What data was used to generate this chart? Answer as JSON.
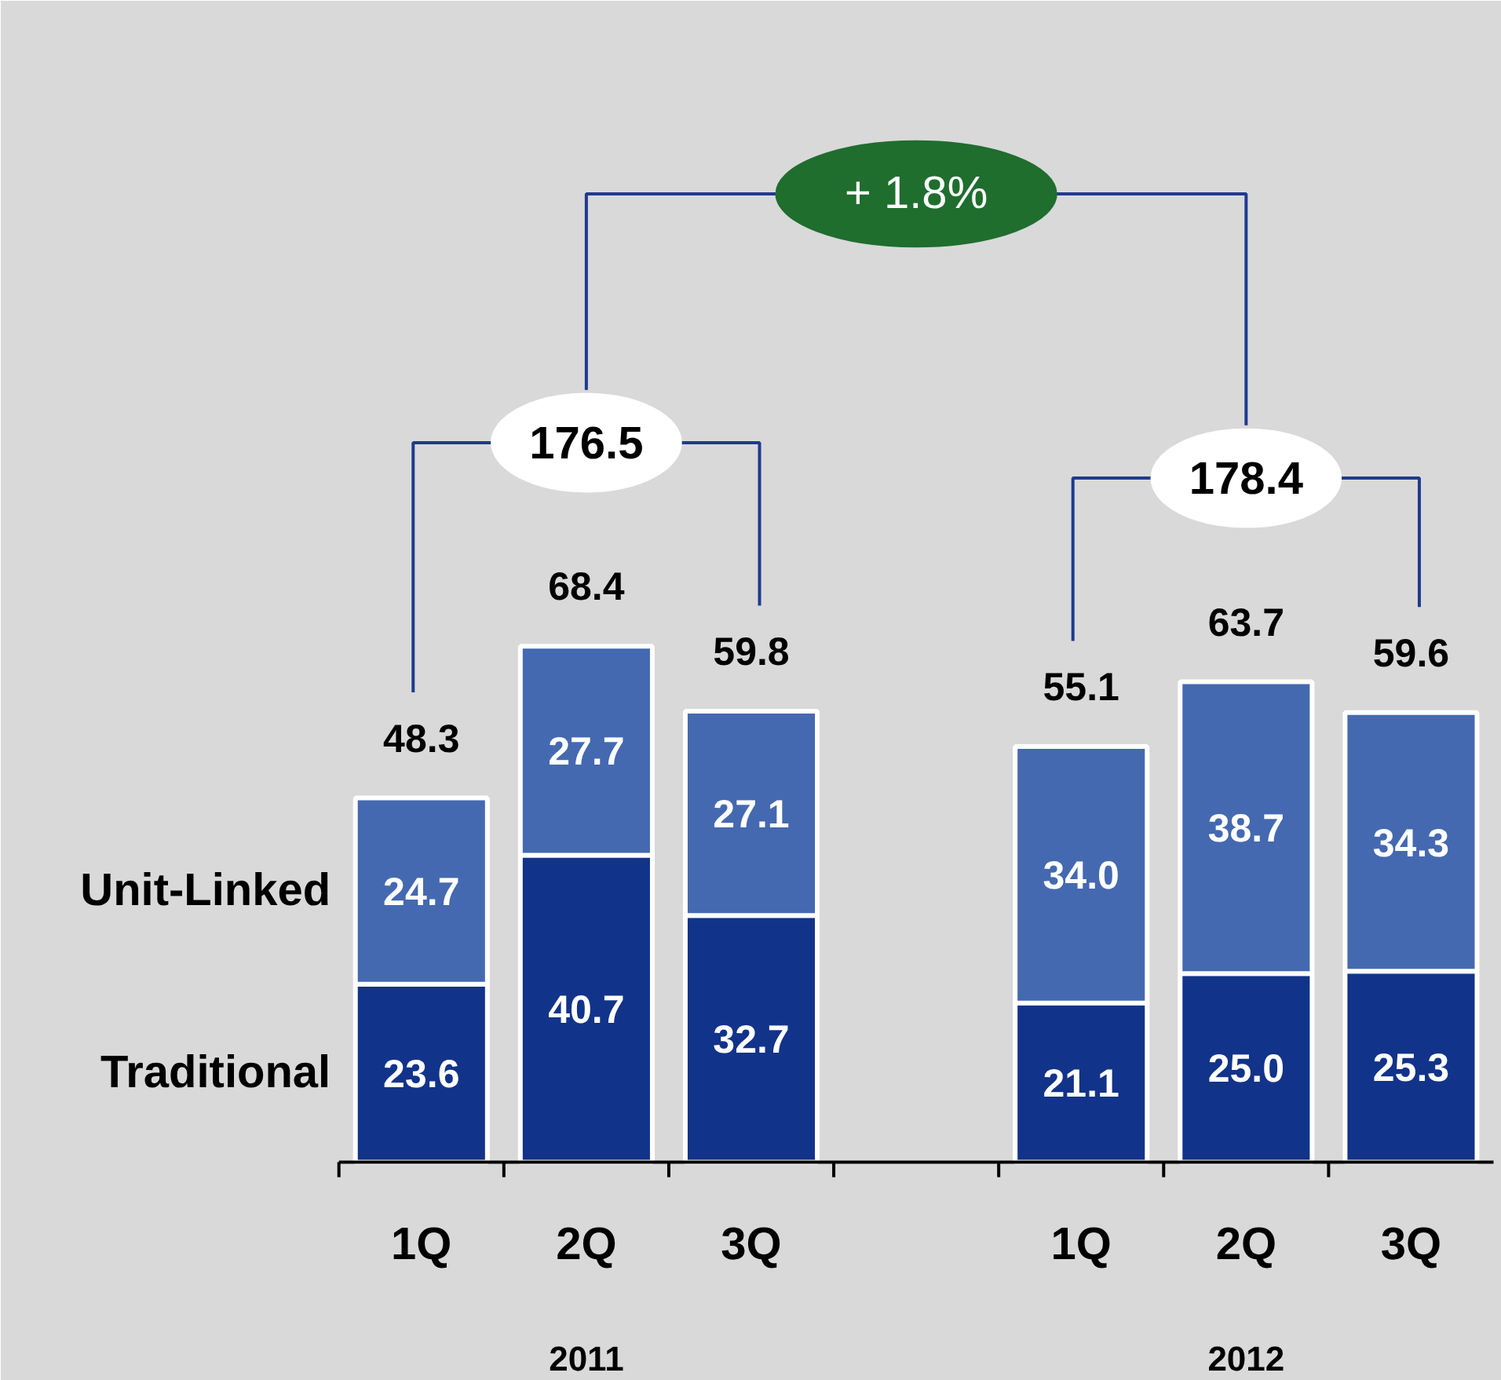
{
  "chart_data": {
    "type": "bar",
    "stacked": true,
    "categories": [
      "1Q",
      "2Q",
      "3Q",
      null,
      "1Q",
      "2Q",
      "3Q"
    ],
    "series": [
      {
        "name": "Traditional",
        "color": "#12338a",
        "values": [
          23.6,
          40.7,
          32.7,
          null,
          21.1,
          25,
          25.3
        ],
        "value_labels": [
          "23.6",
          "40.7",
          "32.7",
          null,
          "21.1",
          "25.0",
          "25.3"
        ]
      },
      {
        "name": "Unit-Linked",
        "color": "#4469b0",
        "values": [
          24.7,
          27.7,
          27.1,
          null,
          34,
          38.7,
          34.3
        ],
        "value_labels": [
          "24.7",
          "27.7",
          "27.1",
          null,
          "34.0",
          "38.7",
          "34.3"
        ]
      }
    ],
    "totals": [
      "48.3",
      "68.4",
      "59.8",
      null,
      "55.1",
      "63.7",
      "59.6"
    ],
    "annotations": [
      "176.5",
      "178.4",
      "+ 1.8%",
      "2011",
      "2012"
    ]
  }
}
